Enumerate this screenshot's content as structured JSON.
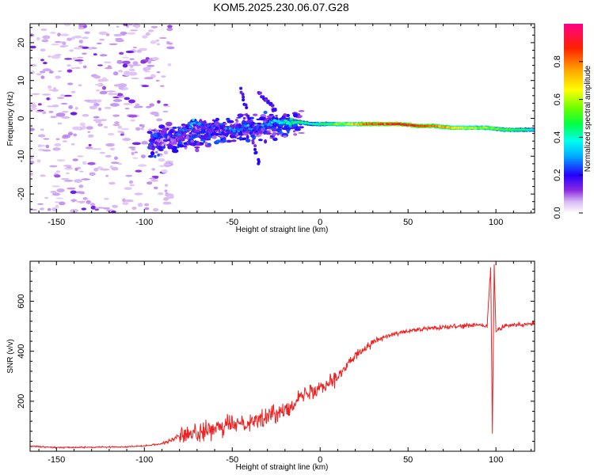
{
  "title": "KOM5.2025.230.06.07.G28",
  "colors": {
    "snr_line": "#ee2222",
    "axis": "#000000",
    "background": "#ffffff"
  },
  "chart_data": [
    {
      "type": "heatmap",
      "xlabel": "Height of straight line (km)",
      "ylabel": "Frequency (Hz)",
      "xlim": [
        -165,
        122
      ],
      "ylim": [
        -25,
        25
      ],
      "x_ticks": [
        -150,
        -100,
        -50,
        0,
        50,
        100
      ],
      "y_ticks": [
        -20,
        -10,
        0,
        10,
        20
      ],
      "x_tick_labels": [
        "-150",
        "-100",
        "-50",
        "0",
        "50",
        "100"
      ],
      "y_tick_labels": [
        "-20",
        "-10",
        "0",
        "10",
        "20"
      ],
      "colorbar": {
        "label": "Normalized spectral amplitude",
        "range": [
          0,
          1
        ],
        "ticks": [
          0.0,
          0.2,
          0.4,
          0.6,
          0.8
        ],
        "tick_labels": [
          "0.0",
          "0.2",
          "0.4",
          "0.6",
          "0.8"
        ]
      },
      "trace_points": [
        {
          "x": -95,
          "y": -7,
          "amp": 0.18
        },
        {
          "x": -88,
          "y": -6,
          "amp": 0.12
        },
        {
          "x": -80,
          "y": -4,
          "amp": 0.25
        },
        {
          "x": -72,
          "y": -1,
          "amp": 0.3
        },
        {
          "x": -65,
          "y": -2,
          "amp": 0.22
        },
        {
          "x": -58,
          "y": -3,
          "amp": 0.2
        },
        {
          "x": -50,
          "y": -3,
          "amp": 0.25
        },
        {
          "x": -42,
          "y": -2,
          "amp": 0.3
        },
        {
          "x": -35,
          "y": -3,
          "amp": 0.22
        },
        {
          "x": -27,
          "y": -1,
          "amp": 0.35
        },
        {
          "x": -20,
          "y": -1,
          "amp": 0.4
        },
        {
          "x": -12,
          "y": -1,
          "amp": 0.45
        },
        {
          "x": -5,
          "y": -1.5,
          "amp": 0.4
        },
        {
          "x": 5,
          "y": -1.5,
          "amp": 0.5
        },
        {
          "x": 15,
          "y": -1.5,
          "amp": 0.6
        },
        {
          "x": 25,
          "y": -1.5,
          "amp": 0.8
        },
        {
          "x": 35,
          "y": -1.5,
          "amp": 0.85
        },
        {
          "x": 45,
          "y": -1.5,
          "amp": 0.9
        },
        {
          "x": 55,
          "y": -2,
          "amp": 0.85
        },
        {
          "x": 65,
          "y": -2,
          "amp": 0.8
        },
        {
          "x": 75,
          "y": -2.5,
          "amp": 0.7
        },
        {
          "x": 85,
          "y": -2.5,
          "amp": 0.6
        },
        {
          "x": 95,
          "y": -2.5,
          "amp": 0.55
        },
        {
          "x": 105,
          "y": -3,
          "amp": 0.5
        },
        {
          "x": 115,
          "y": -3,
          "amp": 0.45
        },
        {
          "x": 122,
          "y": -3,
          "amp": 0.4
        }
      ]
    },
    {
      "type": "line",
      "xlabel": "Height of straight line (km)",
      "ylabel": "SNR (v/v)",
      "xlim": [
        -165,
        122
      ],
      "ylim": [
        0,
        760
      ],
      "x_ticks": [
        -150,
        -100,
        -50,
        0,
        50,
        100
      ],
      "y_ticks": [
        200,
        400,
        600
      ],
      "x_tick_labels": [
        "-150",
        "-100",
        "-50",
        "0",
        "50",
        "100"
      ],
      "y_tick_labels": [
        "200",
        "400",
        "600"
      ],
      "series": [
        {
          "name": "SNR",
          "x": [
            -165,
            -150,
            -130,
            -110,
            -100,
            -90,
            -80,
            -70,
            -60,
            -50,
            -40,
            -30,
            -20,
            -10,
            0,
            10,
            20,
            30,
            40,
            50,
            60,
            70,
            80,
            90,
            95,
            97,
            98,
            99,
            100,
            105,
            110,
            122
          ],
          "y": [
            20,
            15,
            16,
            18,
            22,
            30,
            60,
            75,
            85,
            110,
            120,
            135,
            170,
            220,
            260,
            300,
            380,
            440,
            465,
            480,
            490,
            495,
            500,
            505,
            500,
            740,
            80,
            740,
            480,
            500,
            505,
            510
          ]
        }
      ]
    }
  ]
}
